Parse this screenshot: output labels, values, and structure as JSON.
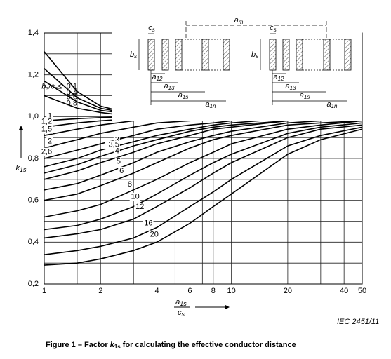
{
  "chart_data": {
    "type": "line",
    "caption": {
      "pre": "Figure 1 – Factor ",
      "k": "k",
      "sub": "1s",
      "post": " for calculating the effective conductor distance"
    },
    "source_tag": "IEC  2451/11",
    "y_label": {
      "base": "k",
      "sub": "1s"
    },
    "x_label": {
      "num_base": "a",
      "num_sub": "1s",
      "den_base": "c",
      "den_sub": "s"
    },
    "curve_label_prefix": {
      "b": "b",
      "bs": "s",
      "mid": "/c",
      "cs": "s",
      "le": "≤"
    },
    "log_x": true,
    "grid": true,
    "line_color": "#000000",
    "xlim": [
      1,
      50
    ],
    "xticks": [
      1,
      2,
      4,
      6,
      8,
      10,
      20,
      40,
      50
    ],
    "xminor": [
      1.5,
      3,
      5,
      7,
      9,
      30
    ],
    "ylim": [
      0.2,
      1.4
    ],
    "yticks": [
      {
        "value": 0.2,
        "label": "0,2"
      },
      {
        "value": 0.4,
        "label": "0,4"
      },
      {
        "value": 0.6,
        "label": "0,6"
      },
      {
        "value": 0.8,
        "label": "0,8"
      },
      {
        "value": 1.0,
        "label": "1,0"
      },
      {
        "value": 1.2,
        "label": "1,2"
      },
      {
        "value": 1.4,
        "label": "1,4"
      }
    ],
    "yminor": [
      0.3,
      0.5,
      0.7,
      0.9,
      1.1,
      1.3
    ],
    "x": [
      1,
      1.5,
      2,
      3,
      4,
      6,
      8,
      10,
      20,
      30,
      50
    ],
    "series": [
      {
        "name": "0,1",
        "values": [
          1.31,
          1.12,
          1.05,
          1.01,
          1.0,
          1.0,
          1.0,
          1.0,
          1.0,
          1.0,
          1.0
        ]
      },
      {
        "name": "0,4",
        "values": [
          1.23,
          1.09,
          1.04,
          1.01,
          1.0,
          1.0,
          1.0,
          1.0,
          1.0,
          1.0,
          1.0
        ]
      },
      {
        "name": "0,6",
        "values": [
          1.17,
          1.07,
          1.03,
          1.01,
          1.0,
          1.0,
          1.0,
          1.0,
          1.0,
          1.0,
          1.0
        ]
      },
      {
        "name": "0,8",
        "values": [
          1.1,
          1.04,
          1.02,
          1.0,
          1.0,
          1.0,
          1.0,
          1.0,
          1.0,
          1.0,
          1.0
        ]
      },
      {
        "name": "1",
        "values": [
          0.98,
          0.99,
          0.995,
          1.0,
          1.0,
          1.0,
          1.0,
          1.0,
          1.0,
          1.0,
          1.0
        ]
      },
      {
        "name": "1,2",
        "values": [
          0.95,
          0.97,
          0.98,
          0.99,
          0.995,
          1.0,
          1.0,
          1.0,
          1.0,
          1.0,
          1.0
        ]
      },
      {
        "name": "1,5",
        "values": [
          0.91,
          0.94,
          0.96,
          0.98,
          0.99,
          0.995,
          1.0,
          1.0,
          1.0,
          1.0,
          1.0
        ]
      },
      {
        "name": "2",
        "values": [
          0.85,
          0.89,
          0.92,
          0.95,
          0.97,
          0.98,
          0.99,
          0.99,
          1.0,
          1.0,
          1.0
        ]
      },
      {
        "name": "2,6",
        "values": [
          0.8,
          0.84,
          0.87,
          0.91,
          0.94,
          0.96,
          0.97,
          0.98,
          0.99,
          1.0,
          1.0
        ]
      },
      {
        "name": "3",
        "values": [
          0.76,
          0.8,
          0.84,
          0.88,
          0.91,
          0.94,
          0.96,
          0.97,
          0.99,
          0.99,
          1.0
        ]
      },
      {
        "name": "3,5",
        "values": [
          0.73,
          0.77,
          0.81,
          0.86,
          0.89,
          0.93,
          0.95,
          0.96,
          0.98,
          0.99,
          1.0
        ]
      },
      {
        "name": "4",
        "values": [
          0.7,
          0.74,
          0.78,
          0.83,
          0.87,
          0.91,
          0.94,
          0.95,
          0.98,
          0.99,
          0.99
        ]
      },
      {
        "name": "5",
        "values": [
          0.65,
          0.68,
          0.72,
          0.78,
          0.83,
          0.88,
          0.91,
          0.93,
          0.97,
          0.98,
          0.99
        ]
      },
      {
        "name": "6",
        "values": [
          0.6,
          0.63,
          0.67,
          0.73,
          0.78,
          0.85,
          0.89,
          0.91,
          0.96,
          0.97,
          0.98
        ]
      },
      {
        "name": "8",
        "values": [
          0.52,
          0.55,
          0.58,
          0.65,
          0.7,
          0.78,
          0.83,
          0.87,
          0.94,
          0.96,
          0.98
        ]
      },
      {
        "name": "10",
        "values": [
          0.46,
          0.48,
          0.51,
          0.57,
          0.63,
          0.72,
          0.78,
          0.82,
          0.92,
          0.95,
          0.97
        ]
      },
      {
        "name": "12",
        "values": [
          0.42,
          0.44,
          0.46,
          0.51,
          0.57,
          0.66,
          0.73,
          0.78,
          0.9,
          0.94,
          0.96
        ]
      },
      {
        "name": "16",
        "values": [
          0.34,
          0.36,
          0.38,
          0.42,
          0.47,
          0.57,
          0.64,
          0.7,
          0.86,
          0.91,
          0.95
        ]
      },
      {
        "name": "20",
        "values": [
          0.29,
          0.3,
          0.32,
          0.36,
          0.4,
          0.49,
          0.57,
          0.63,
          0.82,
          0.89,
          0.94
        ]
      }
    ],
    "diagram_labels": [
      {
        "base": "a",
        "sub": "m"
      },
      {
        "base": "c",
        "sub": "s"
      },
      {
        "base": "b",
        "sub": "s"
      },
      {
        "base": "a",
        "sub": "12"
      },
      {
        "base": "a",
        "sub": "13"
      },
      {
        "base": "a",
        "sub": "1s"
      },
      {
        "base": "a",
        "sub": "1n"
      },
      {
        "base": "c",
        "sub": "s"
      },
      {
        "base": "b",
        "sub": "s"
      },
      {
        "base": "a",
        "sub": "12"
      },
      {
        "base": "a",
        "sub": "13"
      },
      {
        "base": "a",
        "sub": "1s"
      },
      {
        "base": "a",
        "sub": "1n"
      }
    ]
  }
}
